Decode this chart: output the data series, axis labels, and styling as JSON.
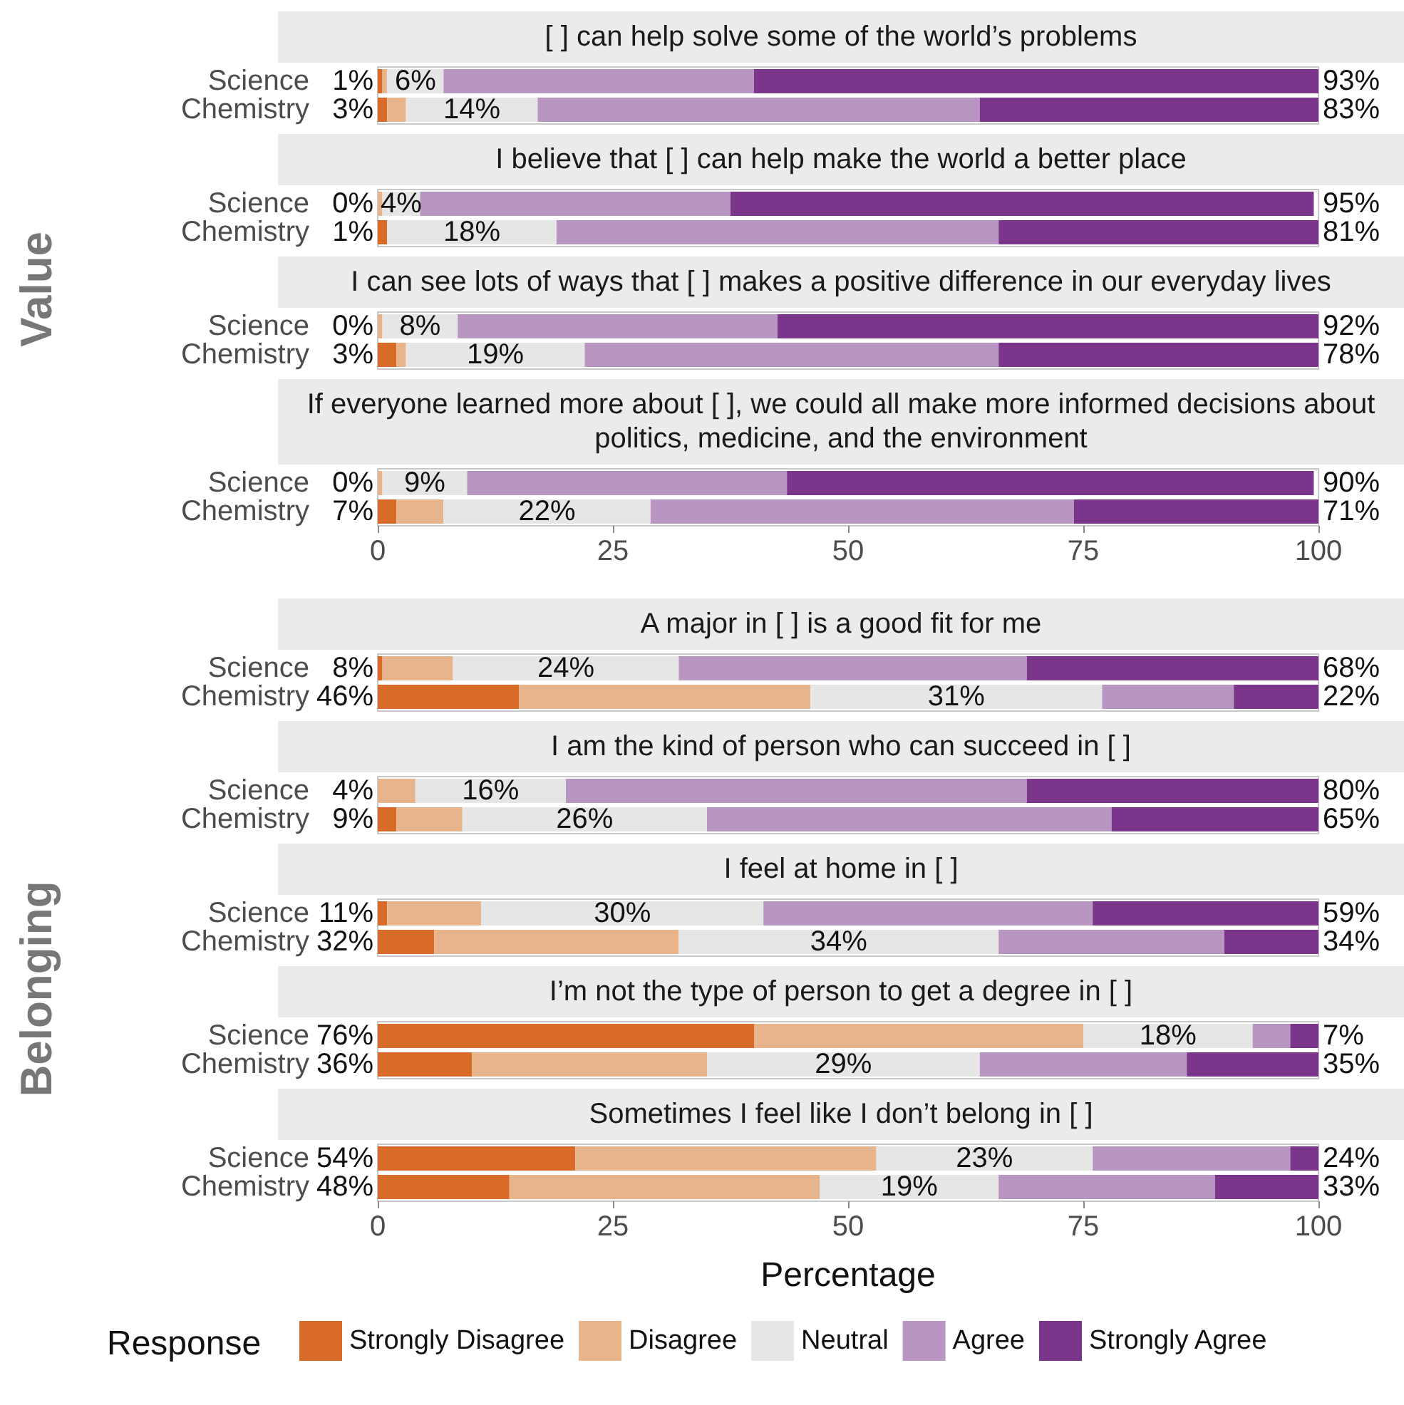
{
  "chart_data": [
    {
      "type": "bar",
      "orientation": "horizontal",
      "stacked": true,
      "ylabel": "Value",
      "title": "[ ] can help solve some of the world’s problems",
      "categories": [
        "Science",
        "Chemistry"
      ],
      "tick_labels": "y",
      "xlim": [
        0,
        100
      ],
      "xticks": [
        0,
        25,
        50,
        75,
        100
      ],
      "series": [
        {
          "color": "#d86b28",
          "values": [
            0.5,
            1
          ]
        },
        {
          "color": "#e8b48c",
          "values": [
            0.5,
            2
          ]
        },
        {
          "color": "#e6e6e6",
          "values": [
            6,
            14
          ],
          "value_labels": [
            "6%",
            "14%"
          ]
        },
        {
          "color": "#b996c2",
          "values": [
            33,
            47
          ]
        },
        {
          "color": "#7b358b",
          "values": [
            60,
            36
          ]
        }
      ],
      "annotations": [
        "1%",
        "3%",
        "93%",
        "83%"
      ]
    },
    {
      "type": "bar",
      "orientation": "horizontal",
      "stacked": true,
      "title": "I believe that [ ] can help make the world a better place",
      "categories": [
        "Science",
        "Chemistry"
      ],
      "tick_labels": "y",
      "xlim": [
        0,
        100
      ],
      "xticks": [
        0,
        25,
        50,
        75,
        100
      ],
      "series": [
        {
          "color": "#d86b28",
          "values": [
            0,
            1
          ]
        },
        {
          "color": "#e8b48c",
          "values": [
            0.5,
            0
          ]
        },
        {
          "color": "#e6e6e6",
          "values": [
            4,
            18
          ],
          "value_labels": [
            "4%",
            "18%"
          ]
        },
        {
          "color": "#b996c2",
          "values": [
            33,
            47
          ]
        },
        {
          "color": "#7b358b",
          "values": [
            62,
            34
          ]
        }
      ],
      "annotations": [
        "0%",
        "1%",
        "95%",
        "81%"
      ]
    },
    {
      "type": "bar",
      "orientation": "horizontal",
      "stacked": true,
      "title": "I can see lots of ways that [ ] makes a positive difference in our everyday lives",
      "categories": [
        "Science",
        "Chemistry"
      ],
      "tick_labels": "y",
      "xlim": [
        0,
        100
      ],
      "xticks": [
        0,
        25,
        50,
        75,
        100
      ],
      "series": [
        {
          "color": "#d86b28",
          "values": [
            0,
            2
          ]
        },
        {
          "color": "#e8b48c",
          "values": [
            0.5,
            1
          ]
        },
        {
          "color": "#e6e6e6",
          "values": [
            8,
            19
          ],
          "value_labels": [
            "8%",
            "19%"
          ]
        },
        {
          "color": "#b996c2",
          "values": [
            34,
            44
          ]
        },
        {
          "color": "#7b358b",
          "values": [
            57.5,
            34
          ]
        }
      ],
      "annotations": [
        "0%",
        "3%",
        "92%",
        "78%"
      ]
    },
    {
      "type": "bar",
      "orientation": "horizontal",
      "stacked": true,
      "title": "If everyone learned more about [ ], we could all make more informed decisions about politics, medicine, and the environment",
      "categories": [
        "Science",
        "Chemistry"
      ],
      "xlim": [
        0,
        100
      ],
      "xticks": [
        0,
        25,
        50,
        75,
        100
      ],
      "series": [
        {
          "color": "#d86b28",
          "values": [
            0,
            2
          ]
        },
        {
          "color": "#e8b48c",
          "values": [
            0.5,
            5
          ]
        },
        {
          "color": "#e6e6e6",
          "values": [
            9,
            22
          ],
          "value_labels": [
            "9%",
            "22%"
          ]
        },
        {
          "color": "#b996c2",
          "values": [
            34,
            45
          ]
        },
        {
          "color": "#7b358b",
          "values": [
            56,
            26
          ]
        }
      ],
      "annotations": [
        "0%",
        "7%",
        "90%",
        "71%"
      ]
    },
    {
      "type": "bar",
      "orientation": "horizontal",
      "stacked": true,
      "ylabel": "Belonging",
      "title": "A major in [ ] is a good fit for me",
      "categories": [
        "Science",
        "Chemistry"
      ],
      "tick_labels": "y",
      "xlim": [
        0,
        100
      ],
      "xticks": [
        0,
        25,
        50,
        75,
        100
      ],
      "series": [
        {
          "color": "#d86b28",
          "values": [
            0.5,
            15
          ]
        },
        {
          "color": "#e8b48c",
          "values": [
            7.5,
            31
          ]
        },
        {
          "color": "#e6e6e6",
          "values": [
            24,
            31
          ],
          "value_labels": [
            "24%",
            "31%"
          ]
        },
        {
          "color": "#b996c2",
          "values": [
            37,
            14
          ]
        },
        {
          "color": "#7b358b",
          "values": [
            31,
            9
          ]
        }
      ],
      "annotations": [
        "8%",
        "46%",
        "68%",
        "22%"
      ]
    },
    {
      "type": "bar",
      "orientation": "horizontal",
      "stacked": true,
      "title": "I am the kind of person who can succeed in [ ]",
      "categories": [
        "Science",
        "Chemistry"
      ],
      "tick_labels": "y",
      "xlim": [
        0,
        100
      ],
      "xticks": [
        0,
        25,
        50,
        75,
        100
      ],
      "series": [
        {
          "color": "#d86b28",
          "values": [
            0,
            2
          ]
        },
        {
          "color": "#e8b48c",
          "values": [
            4,
            7
          ]
        },
        {
          "color": "#e6e6e6",
          "values": [
            16,
            26
          ],
          "value_labels": [
            "16%",
            "26%"
          ]
        },
        {
          "color": "#b996c2",
          "values": [
            49,
            43
          ]
        },
        {
          "color": "#7b358b",
          "values": [
            31,
            22
          ]
        }
      ],
      "annotations": [
        "4%",
        "9%",
        "80%",
        "65%"
      ]
    },
    {
      "type": "bar",
      "orientation": "horizontal",
      "stacked": true,
      "title": "I feel at home in [ ]",
      "categories": [
        "Science",
        "Chemistry"
      ],
      "tick_labels": "y",
      "xlim": [
        0,
        100
      ],
      "xticks": [
        0,
        25,
        50,
        75,
        100
      ],
      "series": [
        {
          "color": "#d86b28",
          "values": [
            1,
            6
          ]
        },
        {
          "color": "#e8b48c",
          "values": [
            10,
            26
          ]
        },
        {
          "color": "#e6e6e6",
          "values": [
            30,
            34
          ],
          "value_labels": [
            "30%",
            "34%"
          ]
        },
        {
          "color": "#b996c2",
          "values": [
            35,
            24
          ]
        },
        {
          "color": "#7b358b",
          "values": [
            24,
            10
          ]
        }
      ],
      "annotations": [
        "11%",
        "32%",
        "59%",
        "34%"
      ]
    },
    {
      "type": "bar",
      "orientation": "horizontal",
      "stacked": true,
      "title": "I’m not the type of person to get a degree in [ ]",
      "categories": [
        "Science",
        "Chemistry"
      ],
      "tick_labels": "y",
      "xlim": [
        0,
        100
      ],
      "xticks": [
        0,
        25,
        50,
        75,
        100
      ],
      "series": [
        {
          "color": "#d86b28",
          "values": [
            40,
            10
          ]
        },
        {
          "color": "#e8b48c",
          "values": [
            35,
            25
          ]
        },
        {
          "color": "#e6e6e6",
          "values": [
            18,
            29
          ],
          "value_labels": [
            "18%",
            "29%"
          ]
        },
        {
          "color": "#b996c2",
          "values": [
            4,
            22
          ]
        },
        {
          "color": "#7b358b",
          "values": [
            3,
            14
          ]
        }
      ],
      "annotations": [
        "76%",
        "36%",
        "7%",
        "35%"
      ]
    },
    {
      "type": "bar",
      "orientation": "horizontal",
      "stacked": true,
      "title": "Sometimes I feel like I don’t belong in [ ]",
      "categories": [
        "Science",
        "Chemistry"
      ],
      "xlim": [
        0,
        100
      ],
      "xticks": [
        0,
        25,
        50,
        75,
        100
      ],
      "xlabel": "Percentage",
      "legend": "bottom",
      "legend_title": "Response",
      "series": [
        {
          "name": "Strongly Disagree",
          "color": "#d86b28",
          "values": [
            21,
            14
          ]
        },
        {
          "name": "Disagree",
          "color": "#e8b48c",
          "values": [
            32,
            33
          ]
        },
        {
          "name": "Neutral",
          "color": "#e6e6e6",
          "values": [
            23,
            19
          ],
          "value_labels": [
            "23%",
            "19%"
          ]
        },
        {
          "name": "Agree",
          "color": "#b996c2",
          "values": [
            21,
            23
          ]
        },
        {
          "name": "Strongly Agree",
          "color": "#7b358b",
          "values": [
            3,
            11
          ]
        }
      ],
      "annotations": [
        "54%",
        "48%",
        "24%",
        "33%"
      ]
    }
  ]
}
